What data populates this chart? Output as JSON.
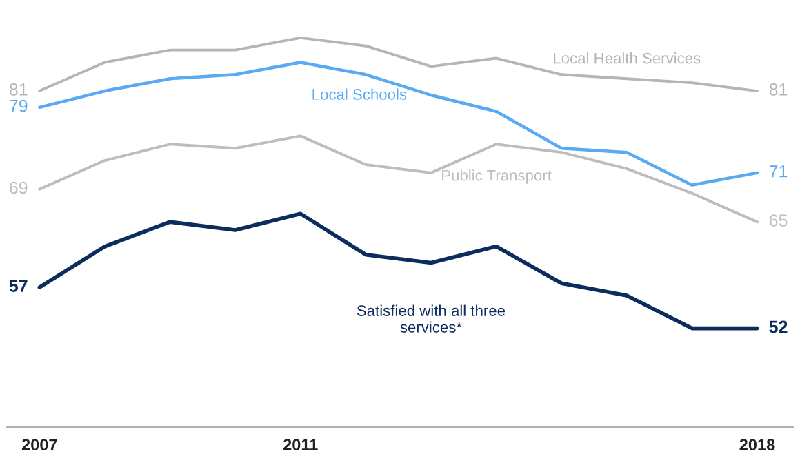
{
  "chart_data": {
    "type": "line",
    "x": [
      2007,
      2008,
      2009,
      2010,
      2011,
      2012,
      2013,
      2014,
      2015,
      2016,
      2017,
      2018
    ],
    "xlim": [
      2006.5,
      2018.55
    ],
    "xticks": [
      2007,
      2011,
      2018
    ],
    "tick_labels": "x",
    "grid": false,
    "legend": false,
    "marker": "none",
    "line_style": "solid",
    "series": [
      {
        "name": "Local Health Services",
        "color": "#b5b5b5",
        "values": [
          81,
          84.5,
          86,
          86,
          87.5,
          86.5,
          84,
          85,
          83,
          82.5,
          82,
          81
        ],
        "value_labels": [
          "81",
          null,
          null,
          null,
          null,
          null,
          null,
          null,
          null,
          null,
          null,
          "81"
        ]
      },
      {
        "name": "Local Schools",
        "color": "#5aa9f3",
        "values": [
          79,
          81,
          82.5,
          83,
          84.5,
          83,
          80.5,
          78.5,
          74,
          73.5,
          69.5,
          71
        ],
        "value_labels": [
          "79",
          null,
          null,
          null,
          null,
          null,
          null,
          null,
          null,
          null,
          null,
          "71"
        ]
      },
      {
        "name": "Public Transport",
        "color": "#bdbdbd",
        "values": [
          69,
          72.5,
          74.5,
          74,
          75.5,
          72,
          71,
          74.5,
          73.5,
          71.5,
          68.5,
          65
        ],
        "value_labels": [
          "69",
          null,
          null,
          null,
          null,
          null,
          null,
          null,
          null,
          null,
          null,
          "65"
        ]
      },
      {
        "name": "Satisfied with all three services*",
        "color": "#0c2c5c",
        "values": [
          57,
          62,
          65,
          64,
          66,
          61,
          60,
          62,
          57.5,
          56,
          52,
          52
        ],
        "value_labels": [
          "57",
          null,
          null,
          null,
          null,
          null,
          null,
          null,
          null,
          null,
          null,
          "52"
        ]
      }
    ]
  }
}
